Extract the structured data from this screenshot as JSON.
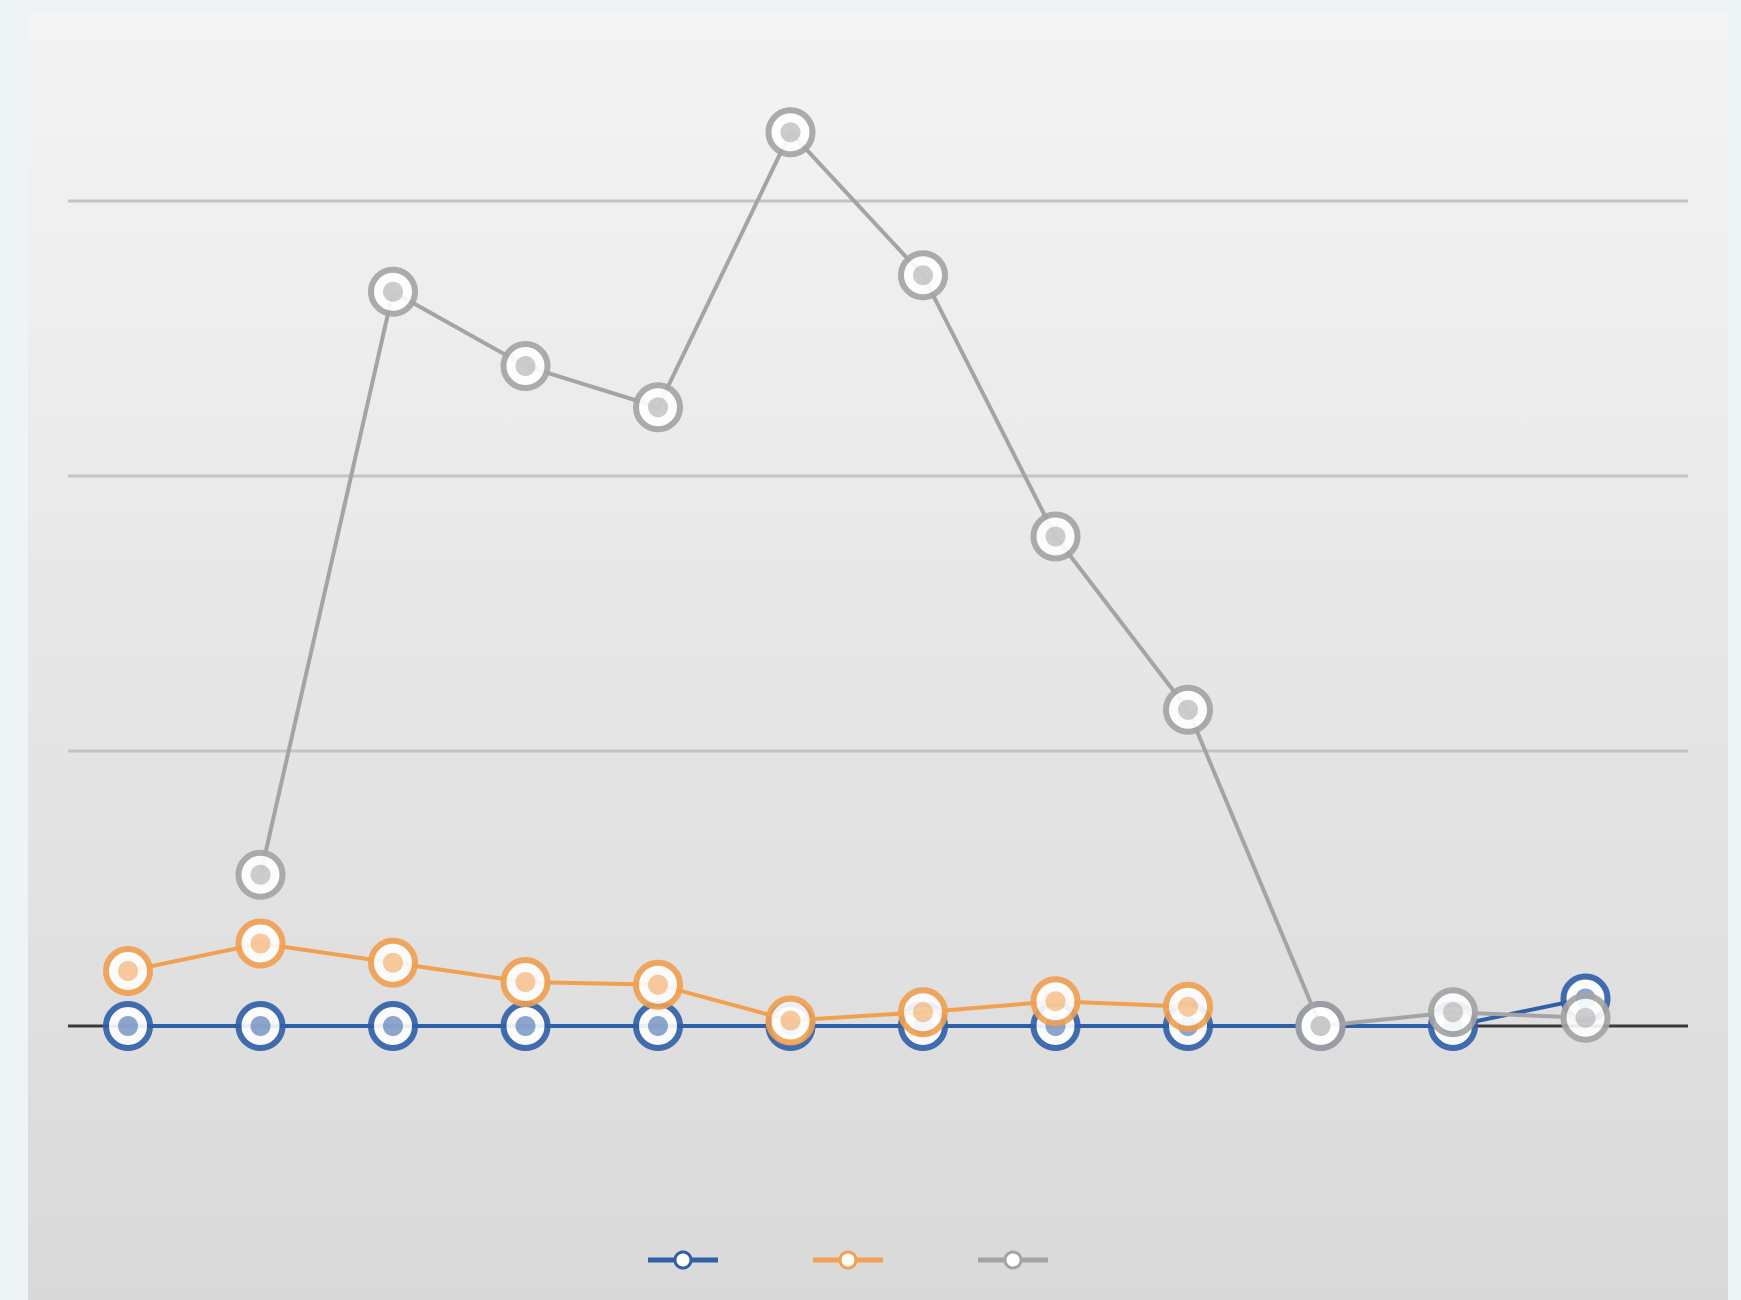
{
  "chart_data": {
    "type": "line",
    "title": "",
    "xlabel": "",
    "ylabel": "",
    "categories": [
      "",
      "",
      "",
      "",
      "",
      "",
      "",
      "",
      "",
      "",
      "",
      ""
    ],
    "ylim": [
      0,
      32
    ],
    "gridlines": [
      10,
      20,
      30
    ],
    "grid": true,
    "legend_position": "bottom",
    "series": [
      {
        "name": "",
        "color": "#2f5fa7",
        "values": [
          0,
          0,
          0,
          0,
          0,
          0,
          0,
          0,
          0,
          0,
          0,
          1
        ],
        "value_labels": [
          "",
          "",
          "",
          "",
          "",
          "",
          "",
          "",
          "",
          "",
          "",
          ""
        ]
      },
      {
        "name": "",
        "color": "#f0a050",
        "values": [
          2,
          3,
          2.3,
          1.6,
          1.5,
          0.2,
          0.5,
          0.9,
          0.7,
          null,
          null,
          null
        ],
        "value_labels": [
          "",
          "",
          "",
          "",
          "",
          "",
          "",
          "",
          "",
          "",
          "",
          ""
        ]
      },
      {
        "name": "",
        "color": "#a4a4a4",
        "values": [
          null,
          5.5,
          26.7,
          24,
          22.5,
          32.5,
          27.3,
          17.8,
          11.5,
          0,
          0.5,
          0.3
        ],
        "value_labels": [
          "",
          "",
          "",
          "",
          "",
          "",
          "",
          "",
          "",
          "",
          "",
          ""
        ]
      }
    ]
  }
}
